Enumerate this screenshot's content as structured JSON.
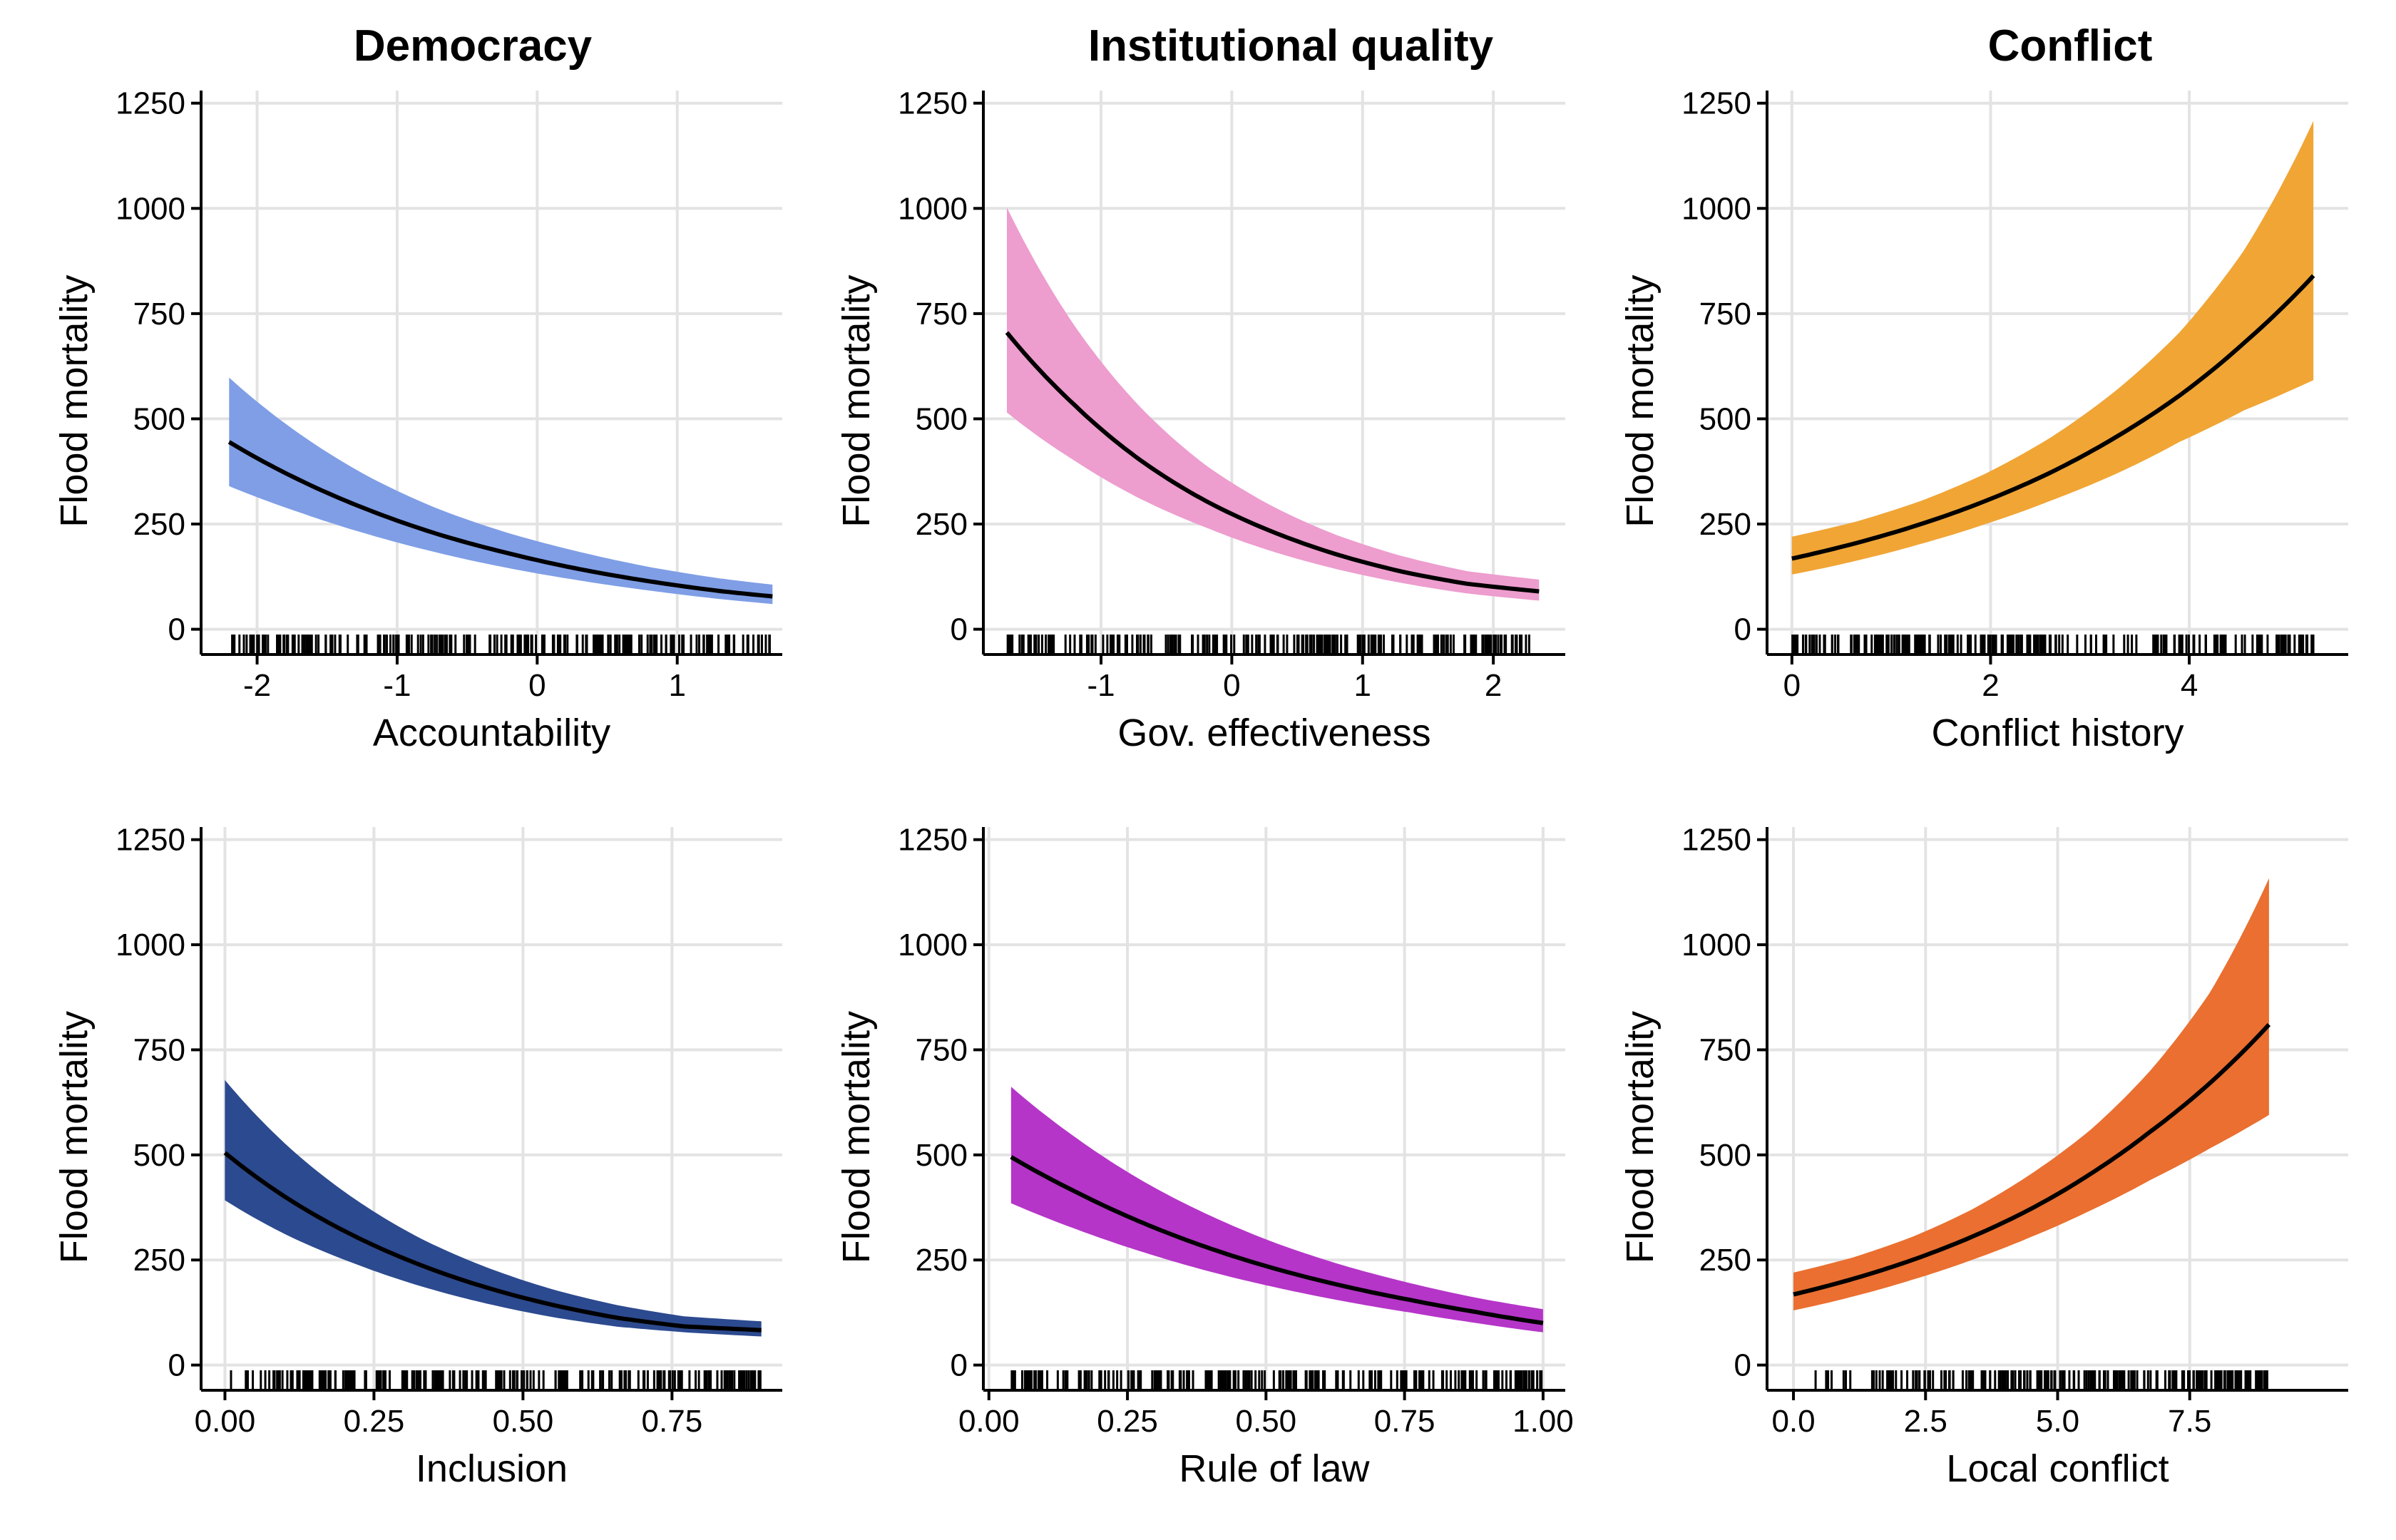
{
  "column_titles": [
    "Democracy",
    "Institutional quality",
    "Conflict"
  ],
  "chart_data": [
    {
      "type": "line",
      "column": "Democracy",
      "title": "",
      "xlabel": "Accountability",
      "ylabel": "Flood mortality",
      "xlim": [
        -2.4,
        1.75
      ],
      "ylim": [
        -60,
        1280
      ],
      "xticks": [
        -2,
        -1,
        0,
        1
      ],
      "xtick_labels": [
        "-2",
        "-1",
        "0",
        "1"
      ],
      "yticks": [
        0,
        250,
        500,
        750,
        1000,
        1250
      ],
      "ytick_labels": [
        "0",
        "250",
        "500",
        "750",
        "1000",
        "1250"
      ],
      "ribbon_color": "#7f9ee6",
      "grid": true,
      "series": [
        {
          "x": [
            -2.2,
            -1.7,
            -1.2,
            -0.7,
            -0.2,
            0.3,
            0.8,
            1.3,
            1.68
          ],
          "y": [
            445,
            355,
            283,
            225,
            180,
            143,
            114,
            91,
            78
          ],
          "y_lower": [
            340,
            278,
            225,
            181,
            145,
            116,
            92,
            72,
            60
          ],
          "y_upper": [
            598,
            465,
            362,
            285,
            228,
            184,
            148,
            121,
            106
          ]
        }
      ],
      "rug_range": [
        -2.2,
        1.68
      ]
    },
    {
      "type": "line",
      "column": "Institutional quality",
      "title": "",
      "xlabel": "Gov. effectiveness",
      "ylabel": "Flood mortality",
      "xlim": [
        -1.9,
        2.55
      ],
      "ylim": [
        -60,
        1280
      ],
      "xticks": [
        -1,
        0,
        1,
        2
      ],
      "xtick_labels": [
        "-1",
        "0",
        "1",
        "2"
      ],
      "yticks": [
        0,
        250,
        500,
        750,
        1000,
        1250
      ],
      "ytick_labels": [
        "0",
        "250",
        "500",
        "750",
        "1000",
        "1250"
      ],
      "ribbon_color": "#ed9dce",
      "grid": true,
      "series": [
        {
          "x": [
            -1.72,
            -1.2,
            -0.7,
            -0.2,
            0.3,
            0.8,
            1.3,
            1.8,
            2.35
          ],
          "y": [
            705,
            532,
            402,
            305,
            233,
            178,
            137,
            108,
            90
          ],
          "y_lower": [
            515,
            400,
            310,
            242,
            186,
            143,
            110,
            85,
            68
          ],
          "y_upper": [
            1002,
            720,
            528,
            390,
            294,
            224,
            174,
            138,
            118
          ]
        }
      ],
      "rug_range": [
        -1.72,
        2.35
      ]
    },
    {
      "type": "line",
      "column": "Conflict",
      "title": "",
      "xlabel": "Conflict history",
      "ylabel": "Flood mortality",
      "xlim": [
        -0.25,
        5.6
      ],
      "ylim": [
        -60,
        1280
      ],
      "xticks": [
        0,
        2,
        4
      ],
      "xtick_labels": [
        "0",
        "2",
        "4"
      ],
      "yticks": [
        0,
        250,
        500,
        750,
        1000,
        1250
      ],
      "ytick_labels": [
        "0",
        "250",
        "500",
        "750",
        "1000",
        "1250"
      ],
      "ribbon_color": "#f0a535",
      "grid": true,
      "series": [
        {
          "x": [
            0,
            0.65,
            1.3,
            1.95,
            2.6,
            3.25,
            3.9,
            4.55,
            5.25
          ],
          "y": [
            168,
            205,
            250,
            305,
            372,
            455,
            555,
            680,
            840
          ],
          "y_lower": [
            130,
            163,
            203,
            250,
            305,
            368,
            445,
            520,
            592
          ],
          "y_upper": [
            220,
            256,
            305,
            370,
            455,
            565,
            705,
            900,
            1208
          ]
        }
      ],
      "rug_range": [
        0,
        5.25
      ]
    },
    {
      "type": "line",
      "column": "Democracy",
      "title": "",
      "xlabel": "Inclusion",
      "ylabel": "Flood mortality",
      "xlim": [
        -0.04,
        0.935
      ],
      "ylim": [
        -60,
        1280
      ],
      "xticks": [
        0,
        0.25,
        0.5,
        0.75
      ],
      "xtick_labels": [
        "0.00",
        "0.25",
        "0.50",
        "0.75"
      ],
      "yticks": [
        0,
        250,
        500,
        750,
        1000,
        1250
      ],
      "ytick_labels": [
        "0",
        "250",
        "500",
        "750",
        "1000",
        "1250"
      ],
      "ribbon_color": "#2c4a8f",
      "grid": true,
      "series": [
        {
          "x": [
            0,
            0.11,
            0.22,
            0.33,
            0.44,
            0.55,
            0.66,
            0.77,
            0.9
          ],
          "y": [
            505,
            392,
            305,
            237,
            184,
            143,
            112,
            92,
            83
          ],
          "y_lower": [
            392,
            305,
            240,
            187,
            146,
            114,
            91,
            78,
            68
          ],
          "y_upper": [
            678,
            515,
            393,
            300,
            232,
            180,
            142,
            116,
            104
          ]
        }
      ],
      "rug_range": [
        0.01,
        0.9
      ]
    },
    {
      "type": "line",
      "column": "Institutional quality",
      "title": "",
      "xlabel": "Rule of law",
      "ylabel": "Flood mortality",
      "xlim": [
        -0.01,
        1.04
      ],
      "ylim": [
        -60,
        1280
      ],
      "xticks": [
        0,
        0.25,
        0.5,
        0.75,
        1
      ],
      "xtick_labels": [
        "0.00",
        "0.25",
        "0.50",
        "0.75",
        "1.00"
      ],
      "yticks": [
        0,
        250,
        500,
        750,
        1000,
        1250
      ],
      "ytick_labels": [
        "0",
        "250",
        "500",
        "750",
        "1000",
        "1250"
      ],
      "ribbon_color": "#b535c8",
      "grid": true,
      "series": [
        {
          "x": [
            0.04,
            0.16,
            0.28,
            0.4,
            0.52,
            0.64,
            0.76,
            0.88,
            1.0
          ],
          "y": [
            495,
            410,
            337,
            277,
            228,
            188,
            155,
            126,
            100
          ],
          "y_lower": [
            385,
            322,
            268,
            222,
            184,
            152,
            125,
            100,
            78
          ],
          "y_upper": [
            662,
            538,
            436,
            355,
            289,
            237,
            195,
            160,
            133
          ]
        }
      ],
      "rug_range": [
        0.04,
        1.0
      ]
    },
    {
      "type": "line",
      "column": "Conflict",
      "title": "",
      "xlabel": "Local conflict",
      "ylabel": "Flood mortality",
      "xlim": [
        -0.5,
        10.5
      ],
      "ylim": [
        -60,
        1280
      ],
      "xticks": [
        0,
        2.5,
        5,
        7.5
      ],
      "xtick_labels": [
        "0.0",
        "2.5",
        "5.0",
        "7.5"
      ],
      "yticks": [
        0,
        250,
        500,
        750,
        1000,
        1250
      ],
      "ytick_labels": [
        "0",
        "250",
        "500",
        "750",
        "1000",
        "1250"
      ],
      "ribbon_color": "#ea6f30",
      "grid": true,
      "series": [
        {
          "x": [
            0,
            1.125,
            2.25,
            3.375,
            4.5,
            5.625,
            6.75,
            7.875,
            9.0
          ],
          "y": [
            168,
            205,
            250,
            305,
            372,
            455,
            555,
            670,
            810
          ],
          "y_lower": [
            130,
            163,
            203,
            250,
            305,
            368,
            440,
            515,
            595
          ],
          "y_upper": [
            220,
            256,
            305,
            370,
            455,
            560,
            700,
            885,
            1158
          ]
        }
      ],
      "rug_range": [
        0,
        9.0
      ]
    }
  ]
}
